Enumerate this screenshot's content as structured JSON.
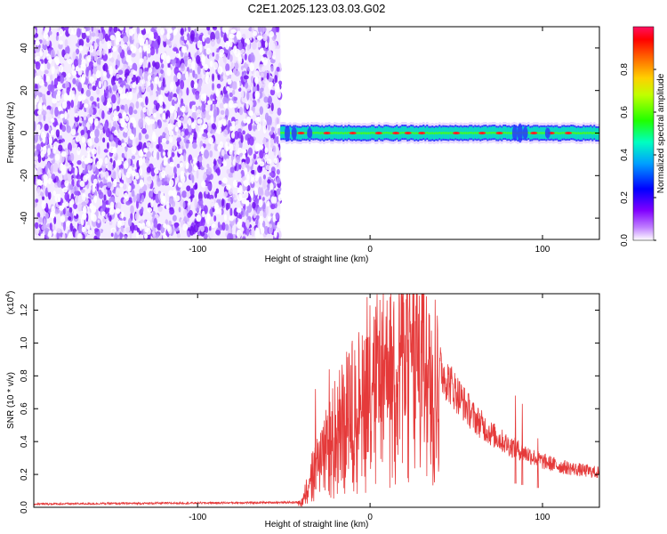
{
  "title": "C2E1.2025.123.03.03.G02",
  "colors": {
    "snr_line": "#e53a3a",
    "frame": "#000000"
  },
  "chart_data": [
    {
      "type": "heatmap",
      "xlabel": "Height of straight line (km)",
      "ylabel": "Frequency (Hz)",
      "xlim": [
        -195,
        133
      ],
      "ylim": [
        -50,
        50
      ],
      "xticks": [
        -100,
        0,
        100
      ],
      "yticks": [
        -40,
        -20,
        0,
        20,
        40
      ],
      "colorbar": {
        "label": "Normalized spectral amplitude",
        "range": [
          0,
          1
        ],
        "ticks": [
          "0.0",
          "0.2",
          "0.4",
          "0.6",
          "0.8"
        ],
        "colors": [
          "#ffffff",
          "#a040ff",
          "#0000ff",
          "#00c0ff",
          "#00ff80",
          "#40ff00",
          "#ffff00",
          "#ff8000",
          "#ff0000",
          "#ff0080"
        ]
      },
      "noise_region_x_end": -52,
      "signal_band_center_hz": 0,
      "signal_band_halfwidth_hz": 4
    },
    {
      "type": "line",
      "xlabel": "Height of straight line (km)",
      "ylabel": "SNR (10 * v/v)",
      "y_multiplier": "(x10",
      "y_multiplier_exp": "4",
      "xlim": [
        -195,
        133
      ],
      "ylim": [
        0,
        1.3
      ],
      "xticks": [
        -100,
        0,
        100
      ],
      "yticks": [
        "0.0",
        "0.2",
        "0.4",
        "0.6",
        "0.8",
        "1.0",
        "1.2"
      ],
      "envelope": {
        "x": [
          -195,
          -40,
          -35,
          -25,
          -15,
          -5,
          0,
          10,
          20,
          25,
          30,
          35,
          40,
          50,
          60,
          70,
          80,
          90,
          100,
          110,
          120,
          133
        ],
        "y": [
          0.02,
          0.03,
          0.2,
          0.45,
          0.65,
          0.78,
          0.88,
          0.92,
          1.02,
          1.07,
          1.08,
          1.02,
          0.85,
          0.7,
          0.55,
          0.45,
          0.38,
          0.33,
          0.28,
          0.25,
          0.23,
          0.21
        ]
      },
      "spikes": {
        "x": [
          -2,
          -24,
          -32,
          84,
          88,
          97
        ],
        "y": [
          1.28,
          0.84,
          0.72,
          0.68,
          0.63,
          0.42
        ]
      }
    }
  ]
}
